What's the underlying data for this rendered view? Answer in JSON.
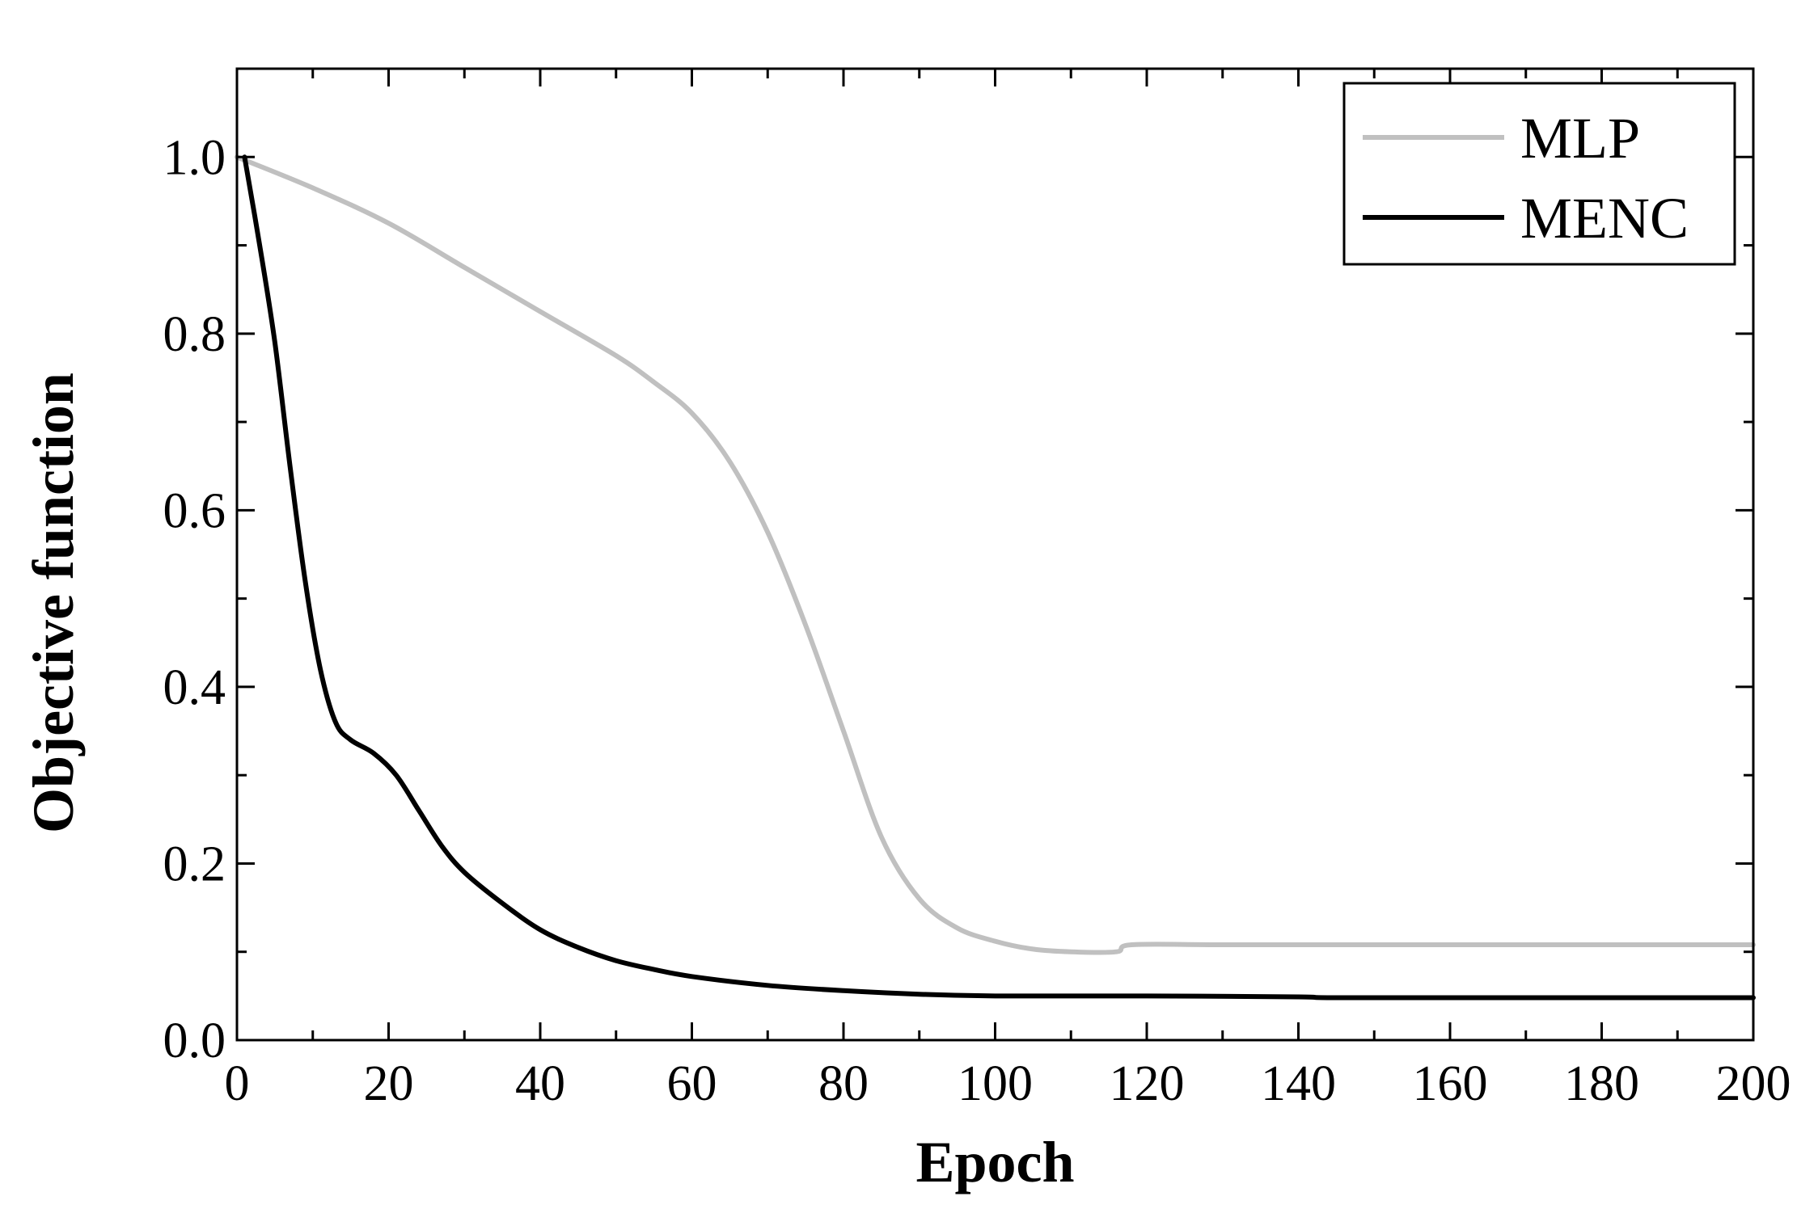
{
  "chart_data": {
    "type": "line",
    "title": "",
    "xlabel": "Epoch",
    "ylabel": "Objective function",
    "xlim": [
      0,
      200
    ],
    "ylim": [
      0,
      1.1
    ],
    "xticks": [
      0,
      20,
      40,
      60,
      80,
      100,
      120,
      140,
      160,
      180,
      200
    ],
    "xtick_labels": [
      "0",
      "20",
      "40",
      "60",
      "80",
      "100",
      "120",
      "140",
      "160",
      "180",
      "200"
    ],
    "yticks": [
      0.0,
      0.2,
      0.4,
      0.6,
      0.8,
      1.0
    ],
    "ytick_labels": [
      "0.0",
      "0.2",
      "0.4",
      "0.6",
      "0.8",
      "1.0"
    ],
    "grid": false,
    "legend_position": "top-right",
    "series": [
      {
        "name": "MLP",
        "color": "#c0c0c0",
        "points": [
          [
            0,
            1.0
          ],
          [
            10,
            0.965
          ],
          [
            20,
            0.925
          ],
          [
            30,
            0.875
          ],
          [
            40,
            0.825
          ],
          [
            50,
            0.775
          ],
          [
            55,
            0.745
          ],
          [
            60,
            0.71
          ],
          [
            65,
            0.655
          ],
          [
            70,
            0.575
          ],
          [
            75,
            0.47
          ],
          [
            80,
            0.35
          ],
          [
            85,
            0.23
          ],
          [
            90,
            0.16
          ],
          [
            95,
            0.127
          ],
          [
            100,
            0.112
          ],
          [
            105,
            0.103
          ],
          [
            110,
            0.1
          ],
          [
            116,
            0.1
          ],
          [
            118,
            0.108
          ],
          [
            130,
            0.108
          ],
          [
            150,
            0.108
          ],
          [
            170,
            0.108
          ],
          [
            200,
            0.108
          ]
        ]
      },
      {
        "name": "MENC",
        "color": "#000000",
        "points": [
          [
            1,
            1.0
          ],
          [
            3,
            0.9
          ],
          [
            5,
            0.79
          ],
          [
            7,
            0.65
          ],
          [
            9,
            0.52
          ],
          [
            11,
            0.42
          ],
          [
            13,
            0.36
          ],
          [
            15,
            0.34
          ],
          [
            18,
            0.325
          ],
          [
            21,
            0.3
          ],
          [
            24,
            0.26
          ],
          [
            27,
            0.22
          ],
          [
            30,
            0.19
          ],
          [
            35,
            0.155
          ],
          [
            40,
            0.125
          ],
          [
            45,
            0.105
          ],
          [
            50,
            0.09
          ],
          [
            55,
            0.08
          ],
          [
            60,
            0.072
          ],
          [
            70,
            0.062
          ],
          [
            80,
            0.056
          ],
          [
            90,
            0.052
          ],
          [
            100,
            0.05
          ],
          [
            120,
            0.05
          ],
          [
            140,
            0.049
          ],
          [
            145,
            0.048
          ],
          [
            170,
            0.048
          ],
          [
            200,
            0.048
          ]
        ]
      }
    ]
  }
}
